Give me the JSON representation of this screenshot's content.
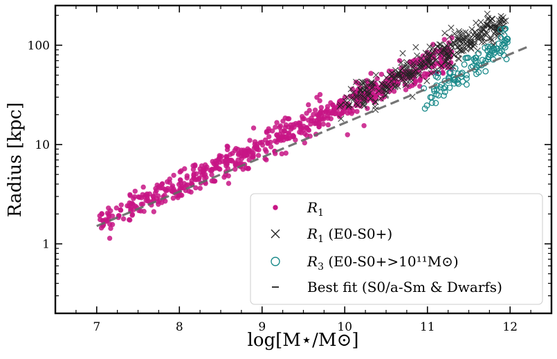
{
  "chart_data": {
    "type": "scatter",
    "title": "",
    "xlabel": "log[M⋆/M⊙]",
    "ylabel": "Radius [kpc]",
    "xlim": [
      6.5,
      12.5
    ],
    "ylim_log10": [
      -0.7,
      2.4
    ],
    "yscale": "log",
    "x_ticks": [
      7,
      8,
      9,
      10,
      11,
      12
    ],
    "x_tick_labels": [
      "7",
      "8",
      "9",
      "10",
      "11",
      "12"
    ],
    "y_ticks": [
      1,
      10,
      100
    ],
    "y_tick_labels": [
      "1",
      "10",
      "100"
    ],
    "legend": {
      "position": "lower-right",
      "entries": [
        {
          "label_main": "R",
          "label_sub": "1",
          "label_rest": "",
          "marker": "filled-circle",
          "color": "#c71585"
        },
        {
          "label_main": "R",
          "label_sub": "1",
          "label_rest": " (E0-S0+)",
          "marker": "x",
          "color": "#222222"
        },
        {
          "label_main": "R",
          "label_sub": "3",
          "label_rest": " (E0-S0+>10¹¹M⊙)",
          "marker": "open-circle",
          "color": "#1a8a8a"
        },
        {
          "label_main": "",
          "label_sub": "",
          "label_rest": "Best fit (S0/a-Sm & Dwarfs)",
          "marker": "dash",
          "color": "#555555"
        }
      ]
    },
    "series": [
      {
        "name": "R1",
        "color": "#c71585",
        "marker": "filled-circle",
        "relation": {
          "slope": 0.4,
          "intercept": -2.6,
          "x_range": [
            7.0,
            11.3
          ]
        },
        "n_points": 700
      },
      {
        "name": "R1 (E0-S0+)",
        "color": "#222222",
        "marker": "x",
        "relation": {
          "slope": 0.43,
          "intercept": -2.9,
          "x_range": [
            9.9,
            11.95
          ]
        },
        "n_points": 330
      },
      {
        "name": "R3 (E0-S0+>10^11 Msun)",
        "color": "#1a8a8a",
        "marker": "open-circle",
        "relation": {
          "slope": 0.6,
          "intercept": -5.13,
          "x_range": [
            10.95,
            12.0
          ]
        },
        "n_points": 110
      },
      {
        "name": "Best fit (S0/a-Sm & Dwarfs)",
        "type": "line",
        "style": "dashed",
        "color": "#666666",
        "x": [
          7.0,
          12.2
        ],
        "y": [
          1.51,
          95.5
        ]
      }
    ]
  }
}
